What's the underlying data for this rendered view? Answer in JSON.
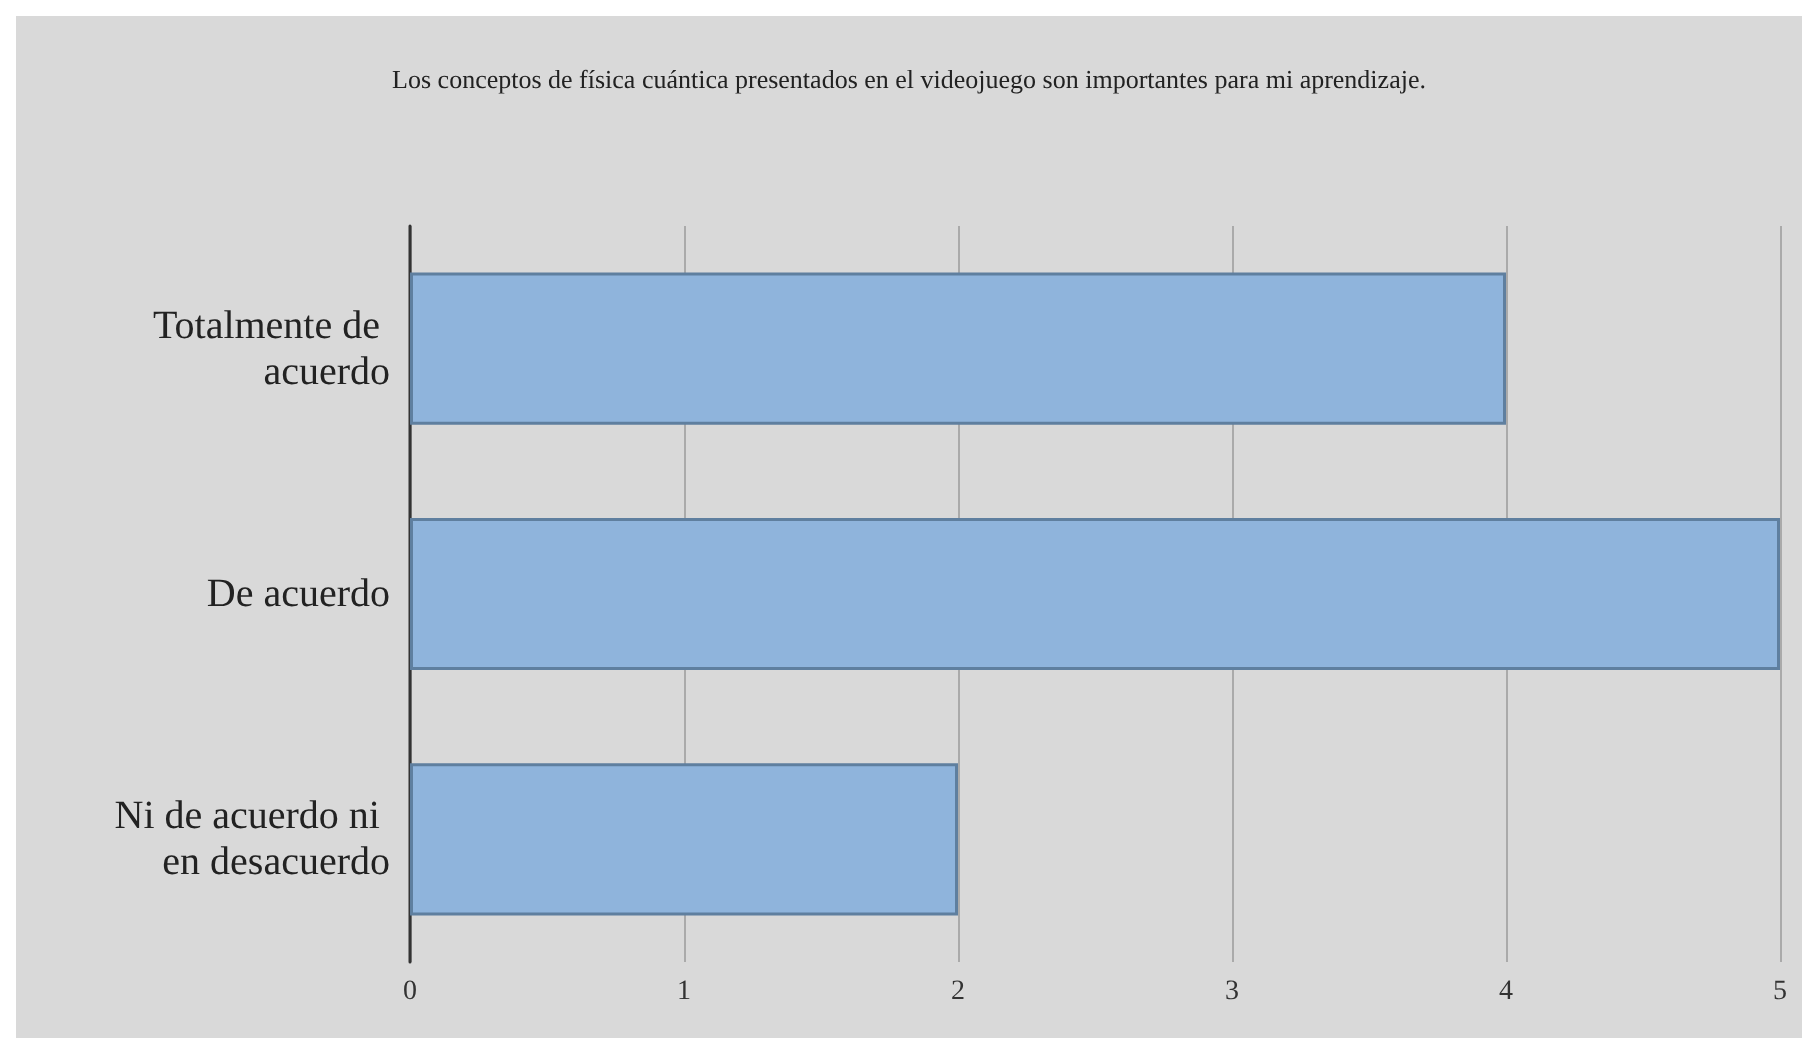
{
  "chart_data": {
    "type": "bar",
    "orientation": "horizontal",
    "title": "Los conceptos de física cuántica presentados en el videojuego son importantes para mi aprendizaje.",
    "categories": [
      "Totalmente de acuerdo",
      "De acuerdo",
      "Ni de acuerdo ni en desacuerdo"
    ],
    "values": [
      4,
      5,
      2
    ],
    "color": "#8fb4dc",
    "xlim": [
      0,
      5
    ],
    "xticks": [
      0,
      1,
      2,
      3,
      4,
      5
    ],
    "grid": "x"
  }
}
